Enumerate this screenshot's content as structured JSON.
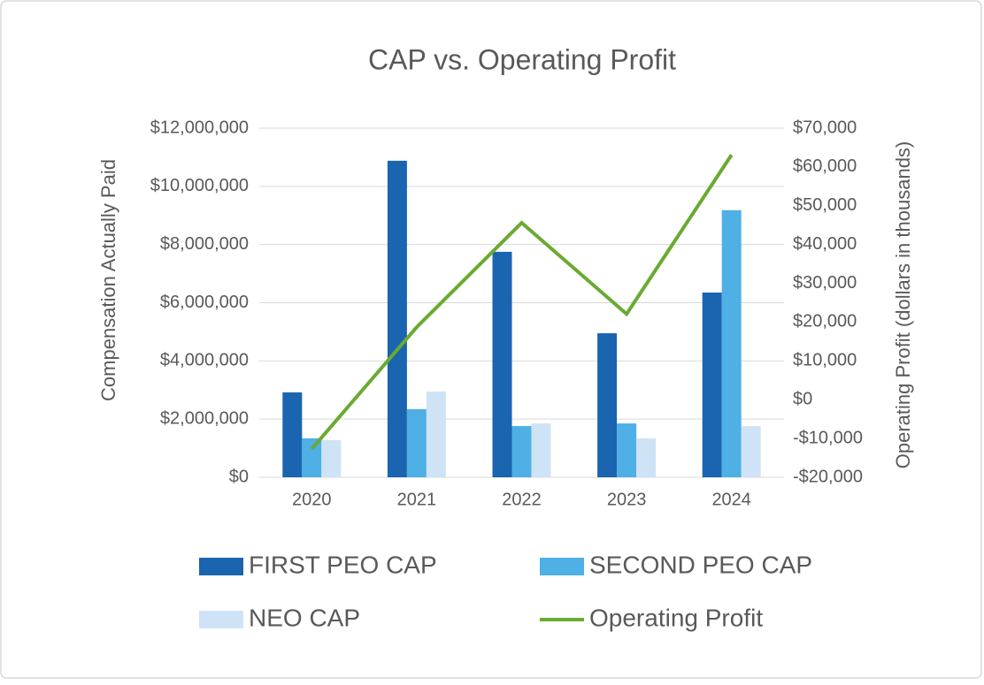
{
  "chart_data": {
    "type": "bar_line",
    "title": "CAP vs. Operating Profit",
    "y_label": "Compensation Actually Paid",
    "y2_label": "Operating Profit (dollars in thousands)",
    "categories": [
      "2020",
      "2021",
      "2022",
      "2023",
      "2024"
    ],
    "series": [
      {
        "name": "FIRST PEO CAP",
        "type": "bar",
        "color": "#1a64b0",
        "values": [
          2920000,
          10880000,
          7750000,
          4950000,
          6350000
        ]
      },
      {
        "name": "SECOND PEO CAP",
        "type": "bar",
        "color": "#4eb0e4",
        "values": [
          1340000,
          2340000,
          1760000,
          1850000,
          9180000
        ]
      },
      {
        "name": "NEO CAP",
        "type": "bar",
        "color": "#cfe3f6",
        "values": [
          1280000,
          2950000,
          1850000,
          1340000,
          1760000
        ]
      },
      {
        "name": "Operating Profit",
        "type": "line",
        "axis": "y2",
        "color": "#6aaa33",
        "values": [
          -12700,
          18700,
          45600,
          22100,
          63100
        ]
      }
    ],
    "ylim": [
      0,
      12000000
    ],
    "yticks": [
      {
        "value": 0,
        "label": "$0"
      },
      {
        "value": 2000000,
        "label": "$2,000,000"
      },
      {
        "value": 4000000,
        "label": "$4,000,000"
      },
      {
        "value": 6000000,
        "label": "$6,000,000"
      },
      {
        "value": 8000000,
        "label": "$8,000,000"
      },
      {
        "value": 10000000,
        "label": "$10,000,000"
      },
      {
        "value": 12000000,
        "label": "$12,000,000"
      }
    ],
    "y2lim": [
      -20000,
      70000
    ],
    "y2ticks": [
      {
        "value": -20000,
        "label": "-$20,000"
      },
      {
        "value": -10000,
        "label": "-$10,000"
      },
      {
        "value": 0,
        "label": "$0"
      },
      {
        "value": 10000,
        "label": "$10,000"
      },
      {
        "value": 20000,
        "label": "$20,000"
      },
      {
        "value": 30000,
        "label": "$30,000"
      },
      {
        "value": 40000,
        "label": "$40,000"
      },
      {
        "value": 50000,
        "label": "$50,000"
      },
      {
        "value": 60000,
        "label": "$60,000"
      },
      {
        "value": 70000,
        "label": "$70,000"
      }
    ],
    "grid": true,
    "legend": "bottom"
  }
}
